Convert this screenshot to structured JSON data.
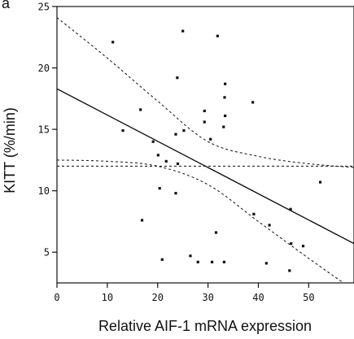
{
  "chart_data": {
    "type": "scatter",
    "panel_label": "a",
    "xlabel": "Relative AIF-1 mRNA expression",
    "ylabel": "KITT (%/min)",
    "xlim": [
      0,
      59
    ],
    "ylim": [
      2.5,
      25
    ],
    "xticks": [
      0,
      10,
      20,
      30,
      40,
      50
    ],
    "yticks": [
      5,
      10,
      15,
      20,
      25
    ],
    "grid": false,
    "points": [
      {
        "x": 11.1,
        "y": 22.1
      },
      {
        "x": 25.0,
        "y": 23.0
      },
      {
        "x": 31.9,
        "y": 22.6
      },
      {
        "x": 23.9,
        "y": 19.2
      },
      {
        "x": 33.4,
        "y": 18.7
      },
      {
        "x": 33.3,
        "y": 17.6
      },
      {
        "x": 38.9,
        "y": 17.2
      },
      {
        "x": 16.6,
        "y": 16.6
      },
      {
        "x": 29.3,
        "y": 16.5
      },
      {
        "x": 33.4,
        "y": 16.1
      },
      {
        "x": 29.3,
        "y": 15.6
      },
      {
        "x": 33.1,
        "y": 15.2
      },
      {
        "x": 13.1,
        "y": 14.9
      },
      {
        "x": 25.2,
        "y": 14.9
      },
      {
        "x": 23.6,
        "y": 14.6
      },
      {
        "x": 30.5,
        "y": 14.2
      },
      {
        "x": 19.1,
        "y": 14.0
      },
      {
        "x": 20.1,
        "y": 12.9
      },
      {
        "x": 21.7,
        "y": 12.4
      },
      {
        "x": 24.0,
        "y": 12.2
      },
      {
        "x": 52.3,
        "y": 10.7
      },
      {
        "x": 20.4,
        "y": 10.2
      },
      {
        "x": 23.6,
        "y": 9.8
      },
      {
        "x": 46.4,
        "y": 8.5
      },
      {
        "x": 39.1,
        "y": 8.1
      },
      {
        "x": 16.9,
        "y": 7.6
      },
      {
        "x": 42.2,
        "y": 7.2
      },
      {
        "x": 31.6,
        "y": 6.6
      },
      {
        "x": 46.5,
        "y": 5.7
      },
      {
        "x": 48.9,
        "y": 5.5
      },
      {
        "x": 26.5,
        "y": 4.7
      },
      {
        "x": 20.9,
        "y": 4.4
      },
      {
        "x": 28.0,
        "y": 4.2
      },
      {
        "x": 30.8,
        "y": 4.2
      },
      {
        "x": 33.2,
        "y": 4.2
      },
      {
        "x": 41.6,
        "y": 4.1
      },
      {
        "x": 46.2,
        "y": 3.5
      }
    ],
    "regression_line": {
      "x": [
        0,
        59
      ],
      "y": [
        18.3,
        5.7
      ],
      "style": "solid"
    },
    "confidence_band_upper": {
      "x": [
        0,
        10,
        20,
        30,
        40,
        50,
        59
      ],
      "y": [
        24.1,
        20.8,
        17.3,
        14.0,
        12.8,
        12.2,
        11.9
      ],
      "style": "dashed"
    },
    "confidence_band_lower": {
      "x": [
        0,
        10,
        20,
        30,
        40,
        50,
        59
      ],
      "y": [
        12.5,
        12.4,
        12.0,
        10.5,
        7.5,
        4.5,
        1.9
      ],
      "style": "dashed"
    },
    "reference_line": {
      "y": 12.0,
      "style": "dashed"
    }
  }
}
